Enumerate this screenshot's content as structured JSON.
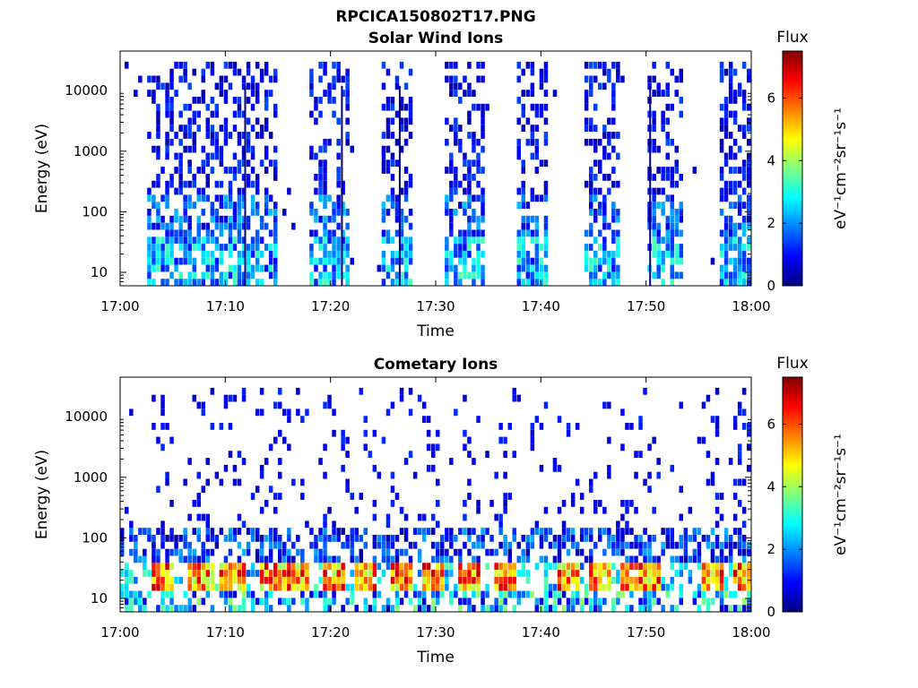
{
  "figure_title": "RPCICA150802T17.PNG",
  "colors": {
    "colormap": [
      "#00007f",
      "#0000ff",
      "#007fff",
      "#00ffff",
      "#7fff7f",
      "#ffff00",
      "#ff7f00",
      "#ff0000",
      "#7f0000"
    ]
  },
  "chart_data": [
    {
      "type": "heatmap",
      "title": "Solar Wind Ions",
      "xlabel": "Time",
      "ylabel": "Energy (eV)",
      "x_ticks": [
        "17:00",
        "17:10",
        "17:20",
        "17:30",
        "17:40",
        "17:50",
        "18:00"
      ],
      "x_range_minutes": [
        0,
        60
      ],
      "y_scale": "log",
      "y_ticks": [
        10,
        100,
        1000,
        10000
      ],
      "y_tick_labels": [
        "10",
        "100",
        "1000",
        "10000"
      ],
      "y_range": [
        6,
        45000
      ],
      "colorbar": {
        "title": "Flux",
        "label": "eV⁻¹cm⁻²sr⁻¹s⁻¹",
        "range": [
          0,
          7.5
        ],
        "ticks": [
          0,
          2,
          4,
          6
        ],
        "tick_labels": [
          "0",
          "2",
          "4",
          "6"
        ]
      },
      "emission_bursts_minutes": [
        [
          2.2,
          14.8
        ],
        [
          18.0,
          21.5
        ],
        [
          24.5,
          27.5
        ],
        [
          30.5,
          34.5
        ],
        [
          37.5,
          40.5
        ],
        [
          44.0,
          47.5
        ],
        [
          50.0,
          53.5
        ],
        [
          57.0,
          60.0
        ]
      ],
      "vertical_streaks_minutes": [
        11.8,
        21.0,
        26.5,
        50.3
      ]
    },
    {
      "type": "heatmap",
      "title": "Cometary Ions",
      "xlabel": "Time",
      "ylabel": "Energy (eV)",
      "x_ticks": [
        "17:00",
        "17:10",
        "17:20",
        "17:30",
        "17:40",
        "17:50",
        "18:00"
      ],
      "x_range_minutes": [
        0,
        60
      ],
      "y_scale": "log",
      "y_ticks": [
        10,
        100,
        1000,
        10000
      ],
      "y_tick_labels": [
        "10",
        "100",
        "1000",
        "10000"
      ],
      "y_range": [
        6,
        45000
      ],
      "colorbar": {
        "title": "Flux",
        "label": "eV⁻¹cm⁻²sr⁻¹s⁻¹",
        "range": [
          0,
          7.5
        ],
        "ticks": [
          0,
          2,
          4,
          6
        ],
        "tick_labels": [
          "0",
          "2",
          "4",
          "6"
        ]
      },
      "intense_band_energy_eV": [
        14,
        40
      ],
      "intense_band_peak_flux": 7,
      "peak_times_minutes": [
        4.0,
        7.5,
        10.5,
        14.0,
        16.5,
        20.0,
        23.0,
        26.5,
        29.5,
        33.0,
        36.5,
        42.5,
        45.5,
        48.5,
        50.0,
        56.0,
        59.0
      ]
    }
  ]
}
